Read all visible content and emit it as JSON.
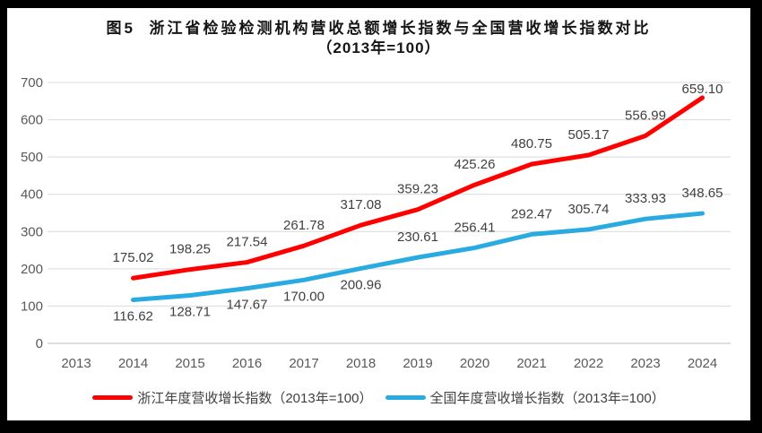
{
  "title": {
    "line1": "图5  浙江省检验检测机构营收总额增长指数与全国营收增长指数对比",
    "line2": "（2013年=100）"
  },
  "chart_data": {
    "type": "line",
    "categories": [
      "2013",
      "2014",
      "2015",
      "2016",
      "2017",
      "2018",
      "2019",
      "2020",
      "2021",
      "2022",
      "2023",
      "2024"
    ],
    "series": [
      {
        "name": "浙江年度营收增长指数（2013年=100）",
        "color": "#FF0000",
        "start_index": 1,
        "values": [
          175.02,
          198.25,
          217.54,
          261.78,
          317.08,
          359.23,
          425.26,
          480.75,
          505.17,
          556.99,
          659.1
        ],
        "label_side": [
          "above",
          "above",
          "above",
          "above",
          "above",
          "above",
          "above",
          "above",
          "above",
          "above",
          "near-above"
        ]
      },
      {
        "name": "全国年度营收增长指数（2013年=100）",
        "color": "#29ABE2",
        "start_index": 1,
        "values": [
          116.62,
          128.71,
          147.67,
          170.0,
          200.96,
          230.61,
          256.41,
          292.47,
          305.74,
          333.93,
          348.65
        ],
        "label_side": [
          "below",
          "below",
          "below",
          "below",
          "below",
          "above",
          "above",
          "above",
          "above",
          "above",
          "above"
        ]
      }
    ],
    "title": "图5 浙江省检验检测机构营收总额增长指数与全国营收增长指数对比（2013年=100）",
    "xlabel": "",
    "ylabel": "",
    "ylim": [
      0,
      700
    ],
    "yticks": [
      0,
      100,
      200,
      300,
      400,
      500,
      600,
      700
    ],
    "grid": "horizontal",
    "legend_position": "bottom",
    "grid_color": "#D9D9D9",
    "axis_line_color": "#BFBFBF",
    "tick_color": "#595959",
    "data_label_color": "#404040"
  }
}
